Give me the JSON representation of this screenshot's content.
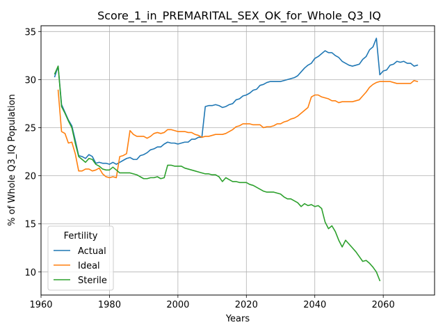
{
  "chart_data": {
    "type": "line",
    "title": "Score_1_in_PREMARITAL_SEX_OK_for_Whole_Q3_IQ",
    "xlabel": "Years",
    "ylabel": "% of Whole Q3_IQ Population",
    "xlim": [
      1960,
      2075
    ],
    "ylim": [
      7.6,
      35.6
    ],
    "xticks": [
      1960,
      1980,
      2000,
      2020,
      2040,
      2060
    ],
    "yticks": [
      10,
      15,
      20,
      25,
      30,
      35
    ],
    "grid": true,
    "legend": {
      "title": "Fertility",
      "placement": "lower-left"
    },
    "series": [
      {
        "name": "Actual",
        "color": "#1f77b4",
        "points": [
          [
            1964,
            30.3
          ],
          [
            1965,
            31.4
          ],
          [
            1966,
            27.4
          ],
          [
            1967,
            26.6
          ],
          [
            1968,
            25.8
          ],
          [
            1969,
            25.2
          ],
          [
            1970,
            23.7
          ],
          [
            1971,
            22.1
          ],
          [
            1972,
            22.0
          ],
          [
            1973,
            21.8
          ],
          [
            1974,
            22.2
          ],
          [
            1975,
            22.0
          ],
          [
            1976,
            21.3
          ],
          [
            1977,
            21.4
          ],
          [
            1978,
            21.3
          ],
          [
            1979,
            21.3
          ],
          [
            1980,
            21.2
          ],
          [
            1981,
            21.4
          ],
          [
            1982,
            21.2
          ],
          [
            1983,
            21.4
          ],
          [
            1984,
            21.6
          ],
          [
            1985,
            21.8
          ],
          [
            1986,
            21.9
          ],
          [
            1987,
            21.7
          ],
          [
            1988,
            21.7
          ],
          [
            1989,
            22.1
          ],
          [
            1990,
            22.2
          ],
          [
            1991,
            22.4
          ],
          [
            1992,
            22.7
          ],
          [
            1993,
            22.8
          ],
          [
            1994,
            23.0
          ],
          [
            1995,
            23.0
          ],
          [
            1996,
            23.3
          ],
          [
            1997,
            23.5
          ],
          [
            1998,
            23.4
          ],
          [
            1999,
            23.4
          ],
          [
            2000,
            23.3
          ],
          [
            2001,
            23.4
          ],
          [
            2002,
            23.5
          ],
          [
            2003,
            23.5
          ],
          [
            2004,
            23.8
          ],
          [
            2005,
            23.8
          ],
          [
            2006,
            24.0
          ],
          [
            2007,
            24.0
          ],
          [
            2008,
            27.2
          ],
          [
            2009,
            27.3
          ],
          [
            2010,
            27.3
          ],
          [
            2011,
            27.4
          ],
          [
            2012,
            27.3
          ],
          [
            2013,
            27.1
          ],
          [
            2014,
            27.2
          ],
          [
            2015,
            27.4
          ],
          [
            2016,
            27.5
          ],
          [
            2017,
            27.9
          ],
          [
            2018,
            28.0
          ],
          [
            2019,
            28.3
          ],
          [
            2020,
            28.4
          ],
          [
            2021,
            28.6
          ],
          [
            2022,
            28.9
          ],
          [
            2023,
            29.0
          ],
          [
            2024,
            29.4
          ],
          [
            2025,
            29.5
          ],
          [
            2026,
            29.7
          ],
          [
            2027,
            29.8
          ],
          [
            2028,
            29.8
          ],
          [
            2029,
            29.8
          ],
          [
            2030,
            29.8
          ],
          [
            2031,
            29.9
          ],
          [
            2032,
            30.0
          ],
          [
            2033,
            30.1
          ],
          [
            2034,
            30.2
          ],
          [
            2035,
            30.4
          ],
          [
            2036,
            30.8
          ],
          [
            2037,
            31.2
          ],
          [
            2038,
            31.5
          ],
          [
            2039,
            31.7
          ],
          [
            2040,
            32.2
          ],
          [
            2041,
            32.4
          ],
          [
            2042,
            32.7
          ],
          [
            2043,
            33.0
          ],
          [
            2044,
            32.8
          ],
          [
            2045,
            32.8
          ],
          [
            2046,
            32.5
          ],
          [
            2047,
            32.3
          ],
          [
            2048,
            31.9
          ],
          [
            2049,
            31.7
          ],
          [
            2050,
            31.5
          ],
          [
            2051,
            31.4
          ],
          [
            2052,
            31.5
          ],
          [
            2053,
            31.6
          ],
          [
            2054,
            32.1
          ],
          [
            2055,
            32.4
          ],
          [
            2056,
            33.1
          ],
          [
            2057,
            33.4
          ],
          [
            2058,
            34.3
          ],
          [
            2059,
            30.5
          ],
          [
            2060,
            30.9
          ],
          [
            2061,
            31.0
          ],
          [
            2062,
            31.5
          ],
          [
            2063,
            31.6
          ],
          [
            2064,
            31.9
          ],
          [
            2065,
            31.8
          ],
          [
            2066,
            31.9
          ],
          [
            2067,
            31.7
          ],
          [
            2068,
            31.7
          ],
          [
            2069,
            31.4
          ],
          [
            2070,
            31.5
          ]
        ]
      },
      {
        "name": "Ideal",
        "color": "#ff7f0e",
        "points": [
          [
            1965,
            28.9
          ],
          [
            1966,
            24.6
          ],
          [
            1967,
            24.4
          ],
          [
            1968,
            23.4
          ],
          [
            1969,
            23.5
          ],
          [
            1970,
            22.3
          ],
          [
            1971,
            20.5
          ],
          [
            1972,
            20.5
          ],
          [
            1973,
            20.7
          ],
          [
            1974,
            20.7
          ],
          [
            1975,
            20.5
          ],
          [
            1976,
            20.6
          ],
          [
            1977,
            20.8
          ],
          [
            1978,
            20.2
          ],
          [
            1979,
            19.9
          ],
          [
            1980,
            19.8
          ],
          [
            1981,
            19.9
          ],
          [
            1982,
            19.8
          ],
          [
            1983,
            22.0
          ],
          [
            1984,
            22.1
          ],
          [
            1985,
            22.3
          ],
          [
            1986,
            24.7
          ],
          [
            1987,
            24.3
          ],
          [
            1988,
            24.1
          ],
          [
            1989,
            24.1
          ],
          [
            1990,
            24.1
          ],
          [
            1991,
            23.9
          ],
          [
            1992,
            24.1
          ],
          [
            1993,
            24.4
          ],
          [
            1994,
            24.5
          ],
          [
            1995,
            24.4
          ],
          [
            1996,
            24.5
          ],
          [
            1997,
            24.8
          ],
          [
            1998,
            24.8
          ],
          [
            1999,
            24.7
          ],
          [
            2000,
            24.6
          ],
          [
            2001,
            24.6
          ],
          [
            2002,
            24.6
          ],
          [
            2003,
            24.5
          ],
          [
            2004,
            24.5
          ],
          [
            2005,
            24.3
          ],
          [
            2006,
            24.2
          ],
          [
            2007,
            24.0
          ],
          [
            2008,
            24.1
          ],
          [
            2009,
            24.1
          ],
          [
            2010,
            24.2
          ],
          [
            2011,
            24.3
          ],
          [
            2012,
            24.3
          ],
          [
            2013,
            24.3
          ],
          [
            2014,
            24.4
          ],
          [
            2015,
            24.6
          ],
          [
            2016,
            24.8
          ],
          [
            2017,
            25.1
          ],
          [
            2018,
            25.2
          ],
          [
            2019,
            25.4
          ],
          [
            2020,
            25.4
          ],
          [
            2021,
            25.4
          ],
          [
            2022,
            25.3
          ],
          [
            2023,
            25.3
          ],
          [
            2024,
            25.3
          ],
          [
            2025,
            25.0
          ],
          [
            2026,
            25.1
          ],
          [
            2027,
            25.1
          ],
          [
            2028,
            25.2
          ],
          [
            2029,
            25.4
          ],
          [
            2030,
            25.4
          ],
          [
            2031,
            25.6
          ],
          [
            2032,
            25.7
          ],
          [
            2033,
            25.9
          ],
          [
            2034,
            26.0
          ],
          [
            2035,
            26.2
          ],
          [
            2036,
            26.5
          ],
          [
            2037,
            26.8
          ],
          [
            2038,
            27.1
          ],
          [
            2039,
            28.2
          ],
          [
            2040,
            28.4
          ],
          [
            2041,
            28.4
          ],
          [
            2042,
            28.2
          ],
          [
            2043,
            28.1
          ],
          [
            2044,
            28.0
          ],
          [
            2045,
            27.8
          ],
          [
            2046,
            27.8
          ],
          [
            2047,
            27.6
          ],
          [
            2048,
            27.7
          ],
          [
            2049,
            27.7
          ],
          [
            2050,
            27.7
          ],
          [
            2051,
            27.7
          ],
          [
            2052,
            27.8
          ],
          [
            2053,
            27.9
          ],
          [
            2054,
            28.3
          ],
          [
            2055,
            28.7
          ],
          [
            2056,
            29.2
          ],
          [
            2057,
            29.5
          ],
          [
            2058,
            29.7
          ],
          [
            2059,
            29.8
          ],
          [
            2060,
            29.8
          ],
          [
            2061,
            29.8
          ],
          [
            2062,
            29.8
          ],
          [
            2063,
            29.7
          ],
          [
            2064,
            29.6
          ],
          [
            2065,
            29.6
          ],
          [
            2066,
            29.6
          ],
          [
            2067,
            29.6
          ],
          [
            2068,
            29.6
          ],
          [
            2069,
            29.9
          ],
          [
            2070,
            29.8
          ]
        ]
      },
      {
        "name": "Sterile",
        "color": "#2ca02c",
        "points": [
          [
            1964,
            30.6
          ],
          [
            1965,
            31.4
          ],
          [
            1966,
            27.2
          ],
          [
            1967,
            26.5
          ],
          [
            1968,
            25.7
          ],
          [
            1969,
            25.0
          ],
          [
            1970,
            23.4
          ],
          [
            1971,
            22.0
          ],
          [
            1972,
            21.7
          ],
          [
            1973,
            21.4
          ],
          [
            1974,
            21.8
          ],
          [
            1975,
            21.7
          ],
          [
            1976,
            21.2
          ],
          [
            1977,
            21.0
          ],
          [
            1978,
            20.7
          ],
          [
            1979,
            20.6
          ],
          [
            1980,
            20.6
          ],
          [
            1981,
            20.9
          ],
          [
            1982,
            20.6
          ],
          [
            1983,
            20.3
          ],
          [
            1984,
            20.3
          ],
          [
            1985,
            20.3
          ],
          [
            1986,
            20.3
          ],
          [
            1987,
            20.2
          ],
          [
            1988,
            20.1
          ],
          [
            1989,
            19.9
          ],
          [
            1990,
            19.7
          ],
          [
            1991,
            19.7
          ],
          [
            1992,
            19.8
          ],
          [
            1993,
            19.8
          ],
          [
            1994,
            19.9
          ],
          [
            1995,
            19.7
          ],
          [
            1996,
            19.8
          ],
          [
            1997,
            21.1
          ],
          [
            1998,
            21.1
          ],
          [
            1999,
            21.0
          ],
          [
            2000,
            21.0
          ],
          [
            2001,
            21.0
          ],
          [
            2002,
            20.8
          ],
          [
            2003,
            20.7
          ],
          [
            2004,
            20.6
          ],
          [
            2005,
            20.5
          ],
          [
            2006,
            20.4
          ],
          [
            2007,
            20.3
          ],
          [
            2008,
            20.2
          ],
          [
            2009,
            20.2
          ],
          [
            2010,
            20.1
          ],
          [
            2011,
            20.1
          ],
          [
            2012,
            19.9
          ],
          [
            2013,
            19.4
          ],
          [
            2014,
            19.8
          ],
          [
            2015,
            19.6
          ],
          [
            2016,
            19.4
          ],
          [
            2017,
            19.4
          ],
          [
            2018,
            19.3
          ],
          [
            2019,
            19.3
          ],
          [
            2020,
            19.3
          ],
          [
            2021,
            19.1
          ],
          [
            2022,
            19.0
          ],
          [
            2023,
            18.8
          ],
          [
            2024,
            18.6
          ],
          [
            2025,
            18.4
          ],
          [
            2026,
            18.3
          ],
          [
            2027,
            18.3
          ],
          [
            2028,
            18.3
          ],
          [
            2029,
            18.2
          ],
          [
            2030,
            18.1
          ],
          [
            2031,
            17.8
          ],
          [
            2032,
            17.6
          ],
          [
            2033,
            17.6
          ],
          [
            2034,
            17.4
          ],
          [
            2035,
            17.2
          ],
          [
            2036,
            16.8
          ],
          [
            2037,
            17.1
          ],
          [
            2038,
            16.9
          ],
          [
            2039,
            17.0
          ],
          [
            2040,
            16.8
          ],
          [
            2041,
            16.9
          ],
          [
            2042,
            16.6
          ],
          [
            2043,
            15.2
          ],
          [
            2044,
            14.5
          ],
          [
            2045,
            14.8
          ],
          [
            2046,
            14.2
          ],
          [
            2047,
            13.3
          ],
          [
            2048,
            12.6
          ],
          [
            2049,
            13.3
          ],
          [
            2050,
            12.9
          ],
          [
            2051,
            12.5
          ],
          [
            2052,
            12.1
          ],
          [
            2053,
            11.6
          ],
          [
            2054,
            11.1
          ],
          [
            2055,
            11.2
          ],
          [
            2056,
            10.9
          ],
          [
            2057,
            10.5
          ],
          [
            2058,
            10.0
          ],
          [
            2059,
            9.1
          ]
        ]
      }
    ]
  }
}
